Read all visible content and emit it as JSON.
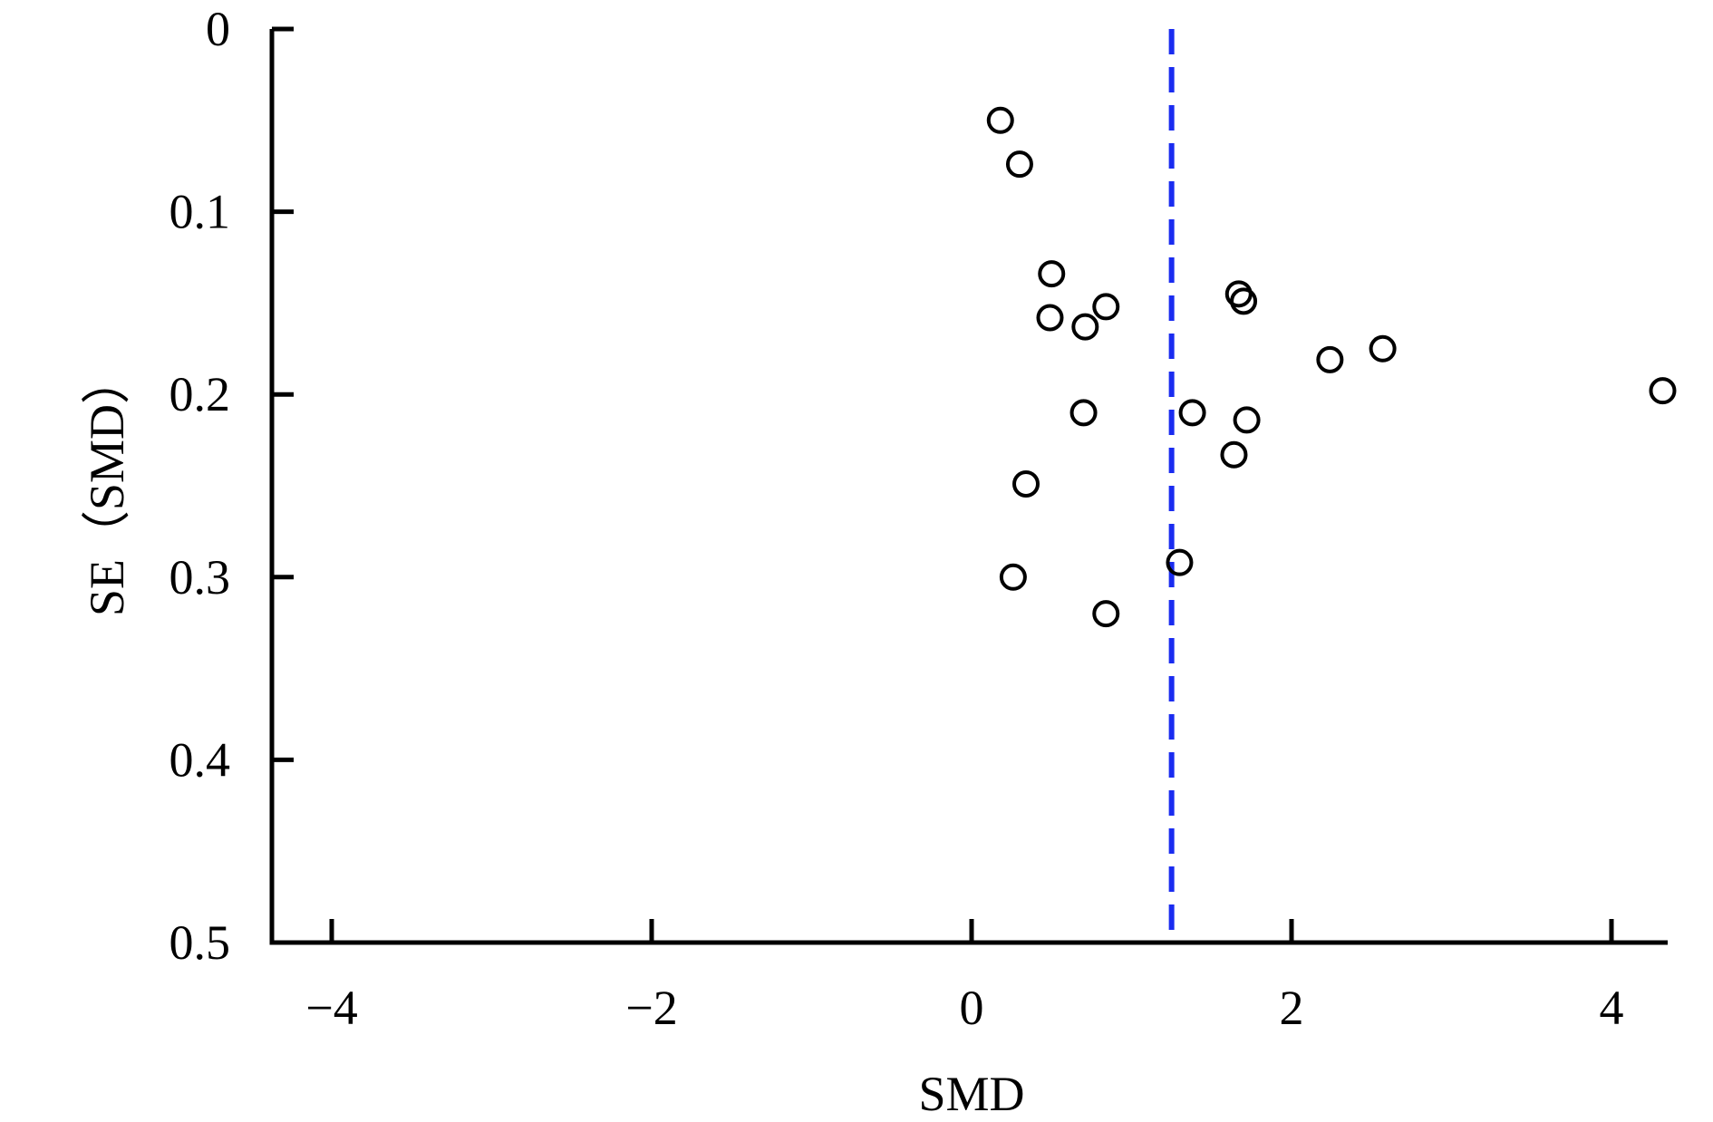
{
  "chart_data": {
    "type": "scatter",
    "title": "",
    "xlabel": "SMD",
    "ylabel": "SE（SMD）",
    "xlim": [
      -4.4,
      4.4
    ],
    "ylim": [
      0,
      0.5
    ],
    "y_inverted": true,
    "grid": false,
    "x_ticks": [
      -4,
      -2,
      0,
      2,
      4
    ],
    "x_tick_labels": [
      "−4",
      "−2",
      "0",
      "2",
      "4"
    ],
    "y_ticks": [
      0,
      0.1,
      0.2,
      0.3,
      0.4,
      0.5
    ],
    "y_tick_labels": [
      "0",
      "0.1",
      "0.2",
      "0.3",
      "0.4",
      "0.5"
    ],
    "reference_line": {
      "x": 1.25,
      "style": "dashed",
      "color": "#1a2cf0"
    },
    "point_color": "#000000",
    "points": [
      {
        "x": 0.18,
        "y": 0.05
      },
      {
        "x": 0.3,
        "y": 0.074
      },
      {
        "x": 0.5,
        "y": 0.134
      },
      {
        "x": 0.49,
        "y": 0.158
      },
      {
        "x": 0.71,
        "y": 0.163
      },
      {
        "x": 0.84,
        "y": 0.152
      },
      {
        "x": 1.67,
        "y": 0.145
      },
      {
        "x": 1.7,
        "y": 0.149
      },
      {
        "x": 2.24,
        "y": 0.181
      },
      {
        "x": 2.57,
        "y": 0.175
      },
      {
        "x": 4.32,
        "y": 0.198
      },
      {
        "x": 0.7,
        "y": 0.21
      },
      {
        "x": 1.38,
        "y": 0.21
      },
      {
        "x": 1.72,
        "y": 0.214
      },
      {
        "x": 1.64,
        "y": 0.233
      },
      {
        "x": 0.34,
        "y": 0.249
      },
      {
        "x": 0.26,
        "y": 0.3
      },
      {
        "x": 1.3,
        "y": 0.292
      },
      {
        "x": 0.84,
        "y": 0.32
      }
    ]
  }
}
